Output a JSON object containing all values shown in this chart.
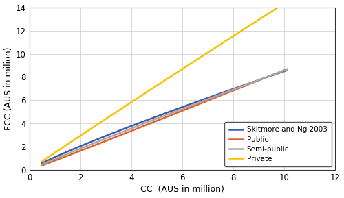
{
  "xlabel": "CC  (AUS in million)",
  "ylabel": "FCC (AUS in milion)",
  "xlim": [
    0,
    12
  ],
  "ylim": [
    0,
    14
  ],
  "xticks": [
    0,
    2,
    4,
    6,
    8,
    10,
    12
  ],
  "yticks": [
    0,
    2,
    4,
    6,
    8,
    10,
    12,
    14
  ],
  "x_start": 0.5,
  "x_end": 10.1,
  "lines": [
    {
      "label": "Skitmore and Ng 2003",
      "color": "#3c5aaa",
      "linewidth": 1.8,
      "a": 1.12,
      "b": 0.88
    },
    {
      "label": "Public",
      "color": "#e0622a",
      "linewidth": 1.8,
      "a": 0.82,
      "b": 1.02
    },
    {
      "label": "Semi-public",
      "color": "#a8a8a8",
      "linewidth": 1.8,
      "a": 0.96,
      "b": 0.95
    },
    {
      "label": "Private",
      "color": "#f5c200",
      "linewidth": 1.8,
      "a": 1.5,
      "b": 0.98
    }
  ],
  "grid_color": "#d8d8d8",
  "background_color": "#ffffff"
}
